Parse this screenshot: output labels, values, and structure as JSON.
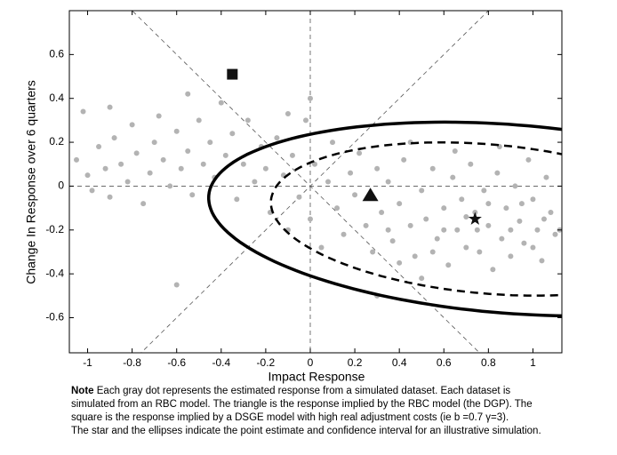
{
  "chart_data": {
    "type": "scatter",
    "xlabel": "Impact Response",
    "ylabel": "Change In Response over 6 quarters",
    "xlim": [
      -1.082,
      1.13
    ],
    "ylim": [
      -0.76,
      0.8
    ],
    "xticks": [
      -1,
      -0.8,
      -0.6,
      -0.4,
      -0.2,
      0,
      0.2,
      0.4,
      0.6,
      0.8,
      1
    ],
    "yticks": [
      -0.6,
      -0.4,
      -0.2,
      0,
      0.2,
      0.4,
      0.6
    ],
    "series": [
      {
        "color": "#b3b3b3",
        "x": [
          -1.05,
          -1.0,
          -0.98,
          -0.95,
          -0.92,
          -0.9,
          -0.88,
          -0.85,
          -0.82,
          -0.8,
          -0.78,
          -0.75,
          -0.72,
          -0.7,
          -0.68,
          -0.66,
          -0.63,
          -0.6,
          -0.58,
          -0.55,
          -0.53,
          -0.5,
          -0.48,
          -0.45,
          -0.43,
          -0.4,
          -0.38,
          -0.35,
          -0.33,
          -0.3,
          -0.28,
          -0.25,
          -0.22,
          -0.2,
          -0.6,
          -1.02,
          -0.55,
          -0.9,
          -0.18,
          -0.15,
          -0.12,
          -0.1,
          -0.08,
          -0.05,
          -0.02,
          0.0,
          0.02,
          0.05,
          0.08,
          0.1,
          0.12,
          0.15,
          0.18,
          0.2,
          0.22,
          0.25,
          0.28,
          0.3,
          0.0,
          -0.1,
          0.32,
          0.35,
          0.37,
          0.4,
          0.42,
          0.45,
          0.47,
          0.5,
          0.52,
          0.55,
          0.57,
          0.6,
          0.62,
          0.64,
          0.66,
          0.68,
          0.7,
          0.72,
          0.74,
          0.76,
          0.78,
          0.8,
          0.82,
          0.84,
          0.86,
          0.88,
          0.9,
          0.92,
          0.94,
          0.96,
          0.98,
          1.0,
          1.02,
          1.04,
          1.06,
          1.08,
          1.1,
          1.12,
          0.5,
          0.65,
          0.85,
          0.45,
          0.55,
          0.75,
          0.95,
          0.6,
          0.7,
          0.8,
          0.9,
          1.0,
          0.4,
          0.35,
          1.05,
          0.3
        ],
        "y": [
          0.12,
          0.05,
          -0.02,
          0.18,
          0.08,
          -0.05,
          0.22,
          0.1,
          0.02,
          0.28,
          0.15,
          -0.08,
          0.06,
          0.2,
          0.32,
          0.12,
          0.0,
          0.25,
          0.08,
          0.16,
          -0.04,
          0.3,
          0.1,
          0.2,
          0.04,
          0.38,
          0.14,
          0.24,
          -0.06,
          0.1,
          0.3,
          0.02,
          0.18,
          0.08,
          -0.45,
          0.34,
          0.42,
          0.36,
          -0.12,
          0.22,
          0.05,
          -0.2,
          0.14,
          -0.05,
          0.3,
          -0.15,
          0.1,
          -0.28,
          0.02,
          0.2,
          -0.1,
          -0.22,
          0.06,
          -0.04,
          0.15,
          -0.18,
          -0.3,
          0.08,
          0.4,
          0.33,
          -0.12,
          0.02,
          -0.25,
          -0.08,
          0.12,
          -0.18,
          -0.32,
          -0.02,
          -0.15,
          0.08,
          -0.24,
          -0.1,
          -0.36,
          0.04,
          -0.2,
          -0.06,
          -0.28,
          0.1,
          -0.12,
          -0.3,
          -0.02,
          -0.18,
          -0.38,
          0.06,
          -0.24,
          -0.1,
          -0.32,
          0.0,
          -0.16,
          -0.26,
          0.12,
          -0.06,
          -0.2,
          -0.34,
          0.04,
          -0.12,
          -0.22,
          -0.2,
          -0.42,
          0.16,
          0.18,
          0.2,
          -0.3,
          -0.2,
          -0.08,
          -0.2,
          -0.14,
          -0.08,
          -0.2,
          -0.28,
          -0.35,
          -0.2,
          -0.15,
          -0.5
        ]
      }
    ],
    "markers": [
      {
        "shape": "square",
        "x": -0.35,
        "y": 0.51
      },
      {
        "shape": "triangle",
        "x": 0.27,
        "y": -0.04
      },
      {
        "shape": "star",
        "x": 0.74,
        "y": -0.15
      }
    ],
    "ellipses": [
      {
        "style": "solid",
        "cx": 0.9,
        "cy": -0.15,
        "rx": 1.36,
        "ry": 0.43,
        "angle": -4.5
      },
      {
        "style": "dashed",
        "cx": 0.8,
        "cy": -0.15,
        "rx": 0.98,
        "ry": 0.34,
        "angle": -5
      }
    ],
    "note": {
      "label": "Note",
      "lines": [
        " Each gray dot represents the estimated response from a simulated dataset.  Each dataset is",
        "simulated from an RBC model.  The triangle is the response implied by the RBC model (the DGP). The",
        "square is the response implied by a DSGE model with high real adjustment costs (ie b =0.7 γ=3).",
        "The star and the ellipses indicate the point estimate and confidence interval for an illustrative simulation."
      ]
    }
  }
}
